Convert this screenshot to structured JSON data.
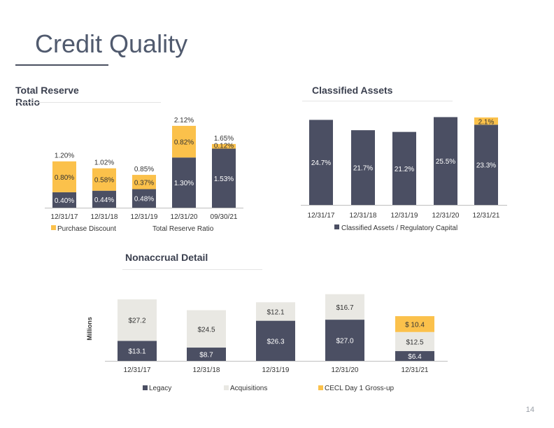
{
  "page": {
    "title": "Credit Quality",
    "page_number": "14"
  },
  "colors": {
    "navy": "#4b4f63",
    "gold": "#fbc14b",
    "light": "#e9e8e3"
  },
  "chart_data": [
    {
      "id": "total-reserve-ratio",
      "type": "bar",
      "stacked": true,
      "title": "Total Reserve Ratio",
      "categories": [
        "12/31/17",
        "12/31/18",
        "12/31/19",
        "12/31/20",
        "09/30/21"
      ],
      "series": [
        {
          "name": "",
          "color": "#4b4f63",
          "values": [
            0.4,
            0.44,
            0.48,
            1.3,
            1.53
          ],
          "labels": [
            "0.40%",
            "0.44%",
            "0.48%",
            "1.30%",
            "1.53%"
          ]
        },
        {
          "name": "Purchase Discount",
          "color": "#fbc14b",
          "values": [
            0.8,
            0.58,
            0.37,
            0.82,
            0.12
          ],
          "labels": [
            "0.80%",
            "0.58%",
            "0.37%",
            "0.82%",
            "0.12%"
          ]
        }
      ],
      "totals": [
        "1.20%",
        "1.02%",
        "0.85%",
        "2.12%",
        "1.65%"
      ],
      "legend": [
        "Purchase Discount",
        "Total Reserve Ratio"
      ],
      "ylim": [
        0,
        2.3
      ]
    },
    {
      "id": "classified-assets",
      "type": "bar",
      "stacked": true,
      "title": "Classified Assets",
      "categories": [
        "12/31/17",
        "12/31/18",
        "12/31/19",
        "12/31/20",
        "12/31/21"
      ],
      "series": [
        {
          "name": "Classified Assets / Regulatory Capital",
          "color": "#4b4f63",
          "values": [
            24.7,
            21.7,
            21.2,
            25.5,
            23.3
          ],
          "labels": [
            "24.7%",
            "21.7%",
            "21.2%",
            "25.5%",
            "23.3%"
          ]
        },
        {
          "name": "",
          "color": "#fbc14b",
          "values": [
            0,
            0,
            0,
            0,
            2.1
          ],
          "labels": [
            "",
            "",
            "",
            "",
            "2.1%"
          ]
        }
      ],
      "legend": [
        "Classified Assets / Regulatory Capital"
      ],
      "ylim": [
        0,
        26
      ]
    },
    {
      "id": "nonaccrual-detail",
      "type": "bar",
      "stacked": true,
      "title": "Nonaccrual Detail",
      "ylabel": "Millions",
      "categories": [
        "12/31/17",
        "12/31/18",
        "12/31/19",
        "12/31/20",
        "12/31/21"
      ],
      "series": [
        {
          "name": "Legacy",
          "color": "#4b4f63",
          "values": [
            13.1,
            8.7,
            26.3,
            27.0,
            6.4
          ],
          "labels": [
            "$13.1",
            "$8.7",
            "$26.3",
            "$27.0",
            "$6.4"
          ]
        },
        {
          "name": "Acquisitions",
          "color": "#e9e8e3",
          "values": [
            27.2,
            24.5,
            12.1,
            16.7,
            12.5
          ],
          "labels": [
            "$27.2",
            "$24.5",
            "$12.1",
            "$16.7",
            "$12.5"
          ]
        },
        {
          "name": "CECL Day 1 Gross-up",
          "color": "#fbc14b",
          "values": [
            0,
            0,
            0,
            0,
            10.4
          ],
          "labels": [
            "",
            "",
            "",
            "",
            "$ 10.4"
          ]
        }
      ],
      "legend": [
        "Legacy",
        "Acquisitions",
        "CECL Day 1 Gross-up"
      ],
      "ylim": [
        0,
        44
      ]
    }
  ]
}
